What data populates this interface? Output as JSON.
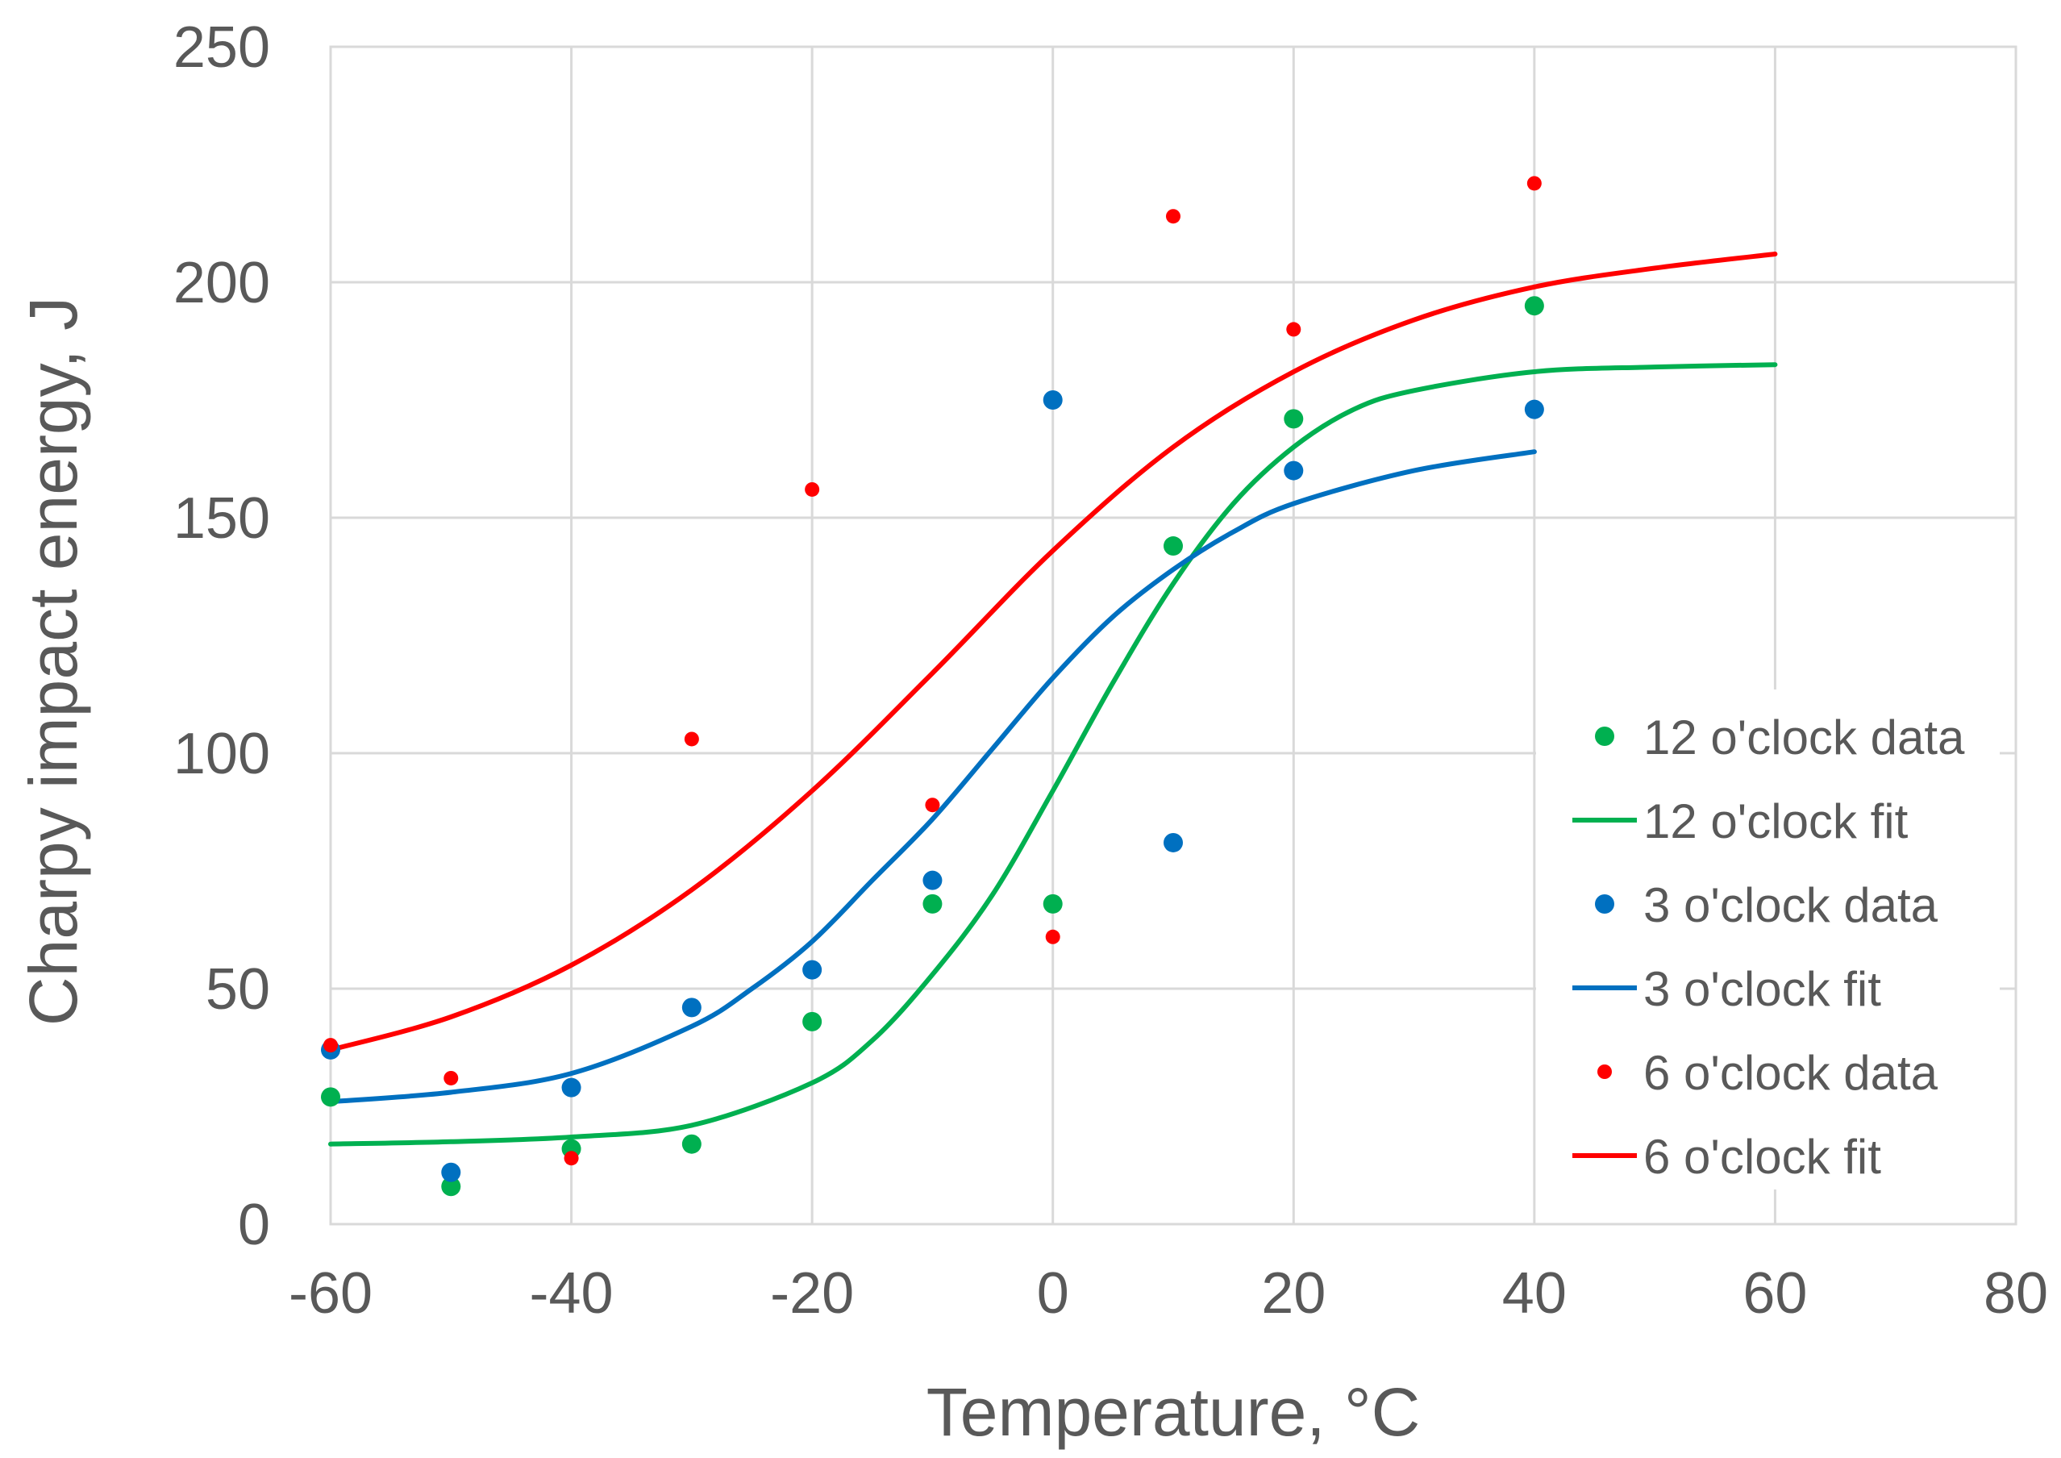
{
  "chart_data": {
    "type": "scatter",
    "title": "",
    "xlabel": "Temperature, °C",
    "ylabel": "Charpy impact energy, J",
    "xlim": [
      -60,
      80
    ],
    "ylim": [
      0,
      250
    ],
    "xticks": [
      -60,
      -40,
      -20,
      0,
      20,
      40,
      60,
      80
    ],
    "yticks": [
      0,
      50,
      100,
      150,
      200,
      250
    ],
    "grid": true,
    "legend_position": "right",
    "series": [
      {
        "name": "12 o'clock data",
        "kind": "scatter",
        "color": "#00b050",
        "points": [
          [
            -60,
            27
          ],
          [
            -50,
            8
          ],
          [
            -40,
            16
          ],
          [
            -30,
            17
          ],
          [
            -20,
            43
          ],
          [
            -10,
            68
          ],
          [
            0,
            68
          ],
          [
            10,
            144
          ],
          [
            20,
            171
          ],
          [
            40,
            195
          ]
        ]
      },
      {
        "name": "12 o'clock fit",
        "kind": "line",
        "color": "#00b050",
        "points": [
          [
            -60,
            17
          ],
          [
            -50,
            17.5
          ],
          [
            -40,
            18.5
          ],
          [
            -30,
            21
          ],
          [
            -20,
            30
          ],
          [
            -15,
            39
          ],
          [
            -10,
            53
          ],
          [
            -5,
            70
          ],
          [
            0,
            92
          ],
          [
            5,
            115
          ],
          [
            10,
            136
          ],
          [
            15,
            153
          ],
          [
            20,
            165
          ],
          [
            25,
            173
          ],
          [
            30,
            177
          ],
          [
            40,
            181
          ],
          [
            50,
            182
          ],
          [
            60,
            182.5
          ]
        ]
      },
      {
        "name": "3 o'clock data",
        "kind": "scatter",
        "color": "#0070c0",
        "points": [
          [
            -60,
            37
          ],
          [
            -50,
            11
          ],
          [
            -40,
            29
          ],
          [
            -30,
            46
          ],
          [
            -20,
            54
          ],
          [
            -10,
            73
          ],
          [
            0,
            175
          ],
          [
            10,
            81
          ],
          [
            20,
            160
          ],
          [
            40,
            173
          ]
        ]
      },
      {
        "name": "3 o'clock fit",
        "kind": "line",
        "color": "#0070c0",
        "points": [
          [
            -60,
            26
          ],
          [
            -50,
            28
          ],
          [
            -40,
            32
          ],
          [
            -30,
            42
          ],
          [
            -25,
            50
          ],
          [
            -20,
            60
          ],
          [
            -15,
            73
          ],
          [
            -10,
            86
          ],
          [
            -5,
            101
          ],
          [
            0,
            116
          ],
          [
            5,
            129
          ],
          [
            10,
            139
          ],
          [
            15,
            147
          ],
          [
            20,
            153
          ],
          [
            30,
            160
          ],
          [
            40,
            164
          ]
        ]
      },
      {
        "name": "6 o'clock data",
        "kind": "scatter",
        "color": "#ff0000",
        "points": [
          [
            -60,
            38
          ],
          [
            -50,
            31
          ],
          [
            -40,
            14
          ],
          [
            -30,
            103
          ],
          [
            -20,
            156
          ],
          [
            -10,
            89
          ],
          [
            0,
            61
          ],
          [
            10,
            214
          ],
          [
            20,
            190
          ],
          [
            40,
            221
          ]
        ]
      },
      {
        "name": "6 o'clock fit",
        "kind": "line",
        "color": "#ff0000",
        "points": [
          [
            -60,
            37
          ],
          [
            -50,
            44
          ],
          [
            -40,
            55
          ],
          [
            -30,
            71
          ],
          [
            -20,
            92
          ],
          [
            -10,
            117
          ],
          [
            0,
            143
          ],
          [
            10,
            165
          ],
          [
            20,
            181
          ],
          [
            30,
            192
          ],
          [
            40,
            199
          ],
          [
            50,
            203
          ],
          [
            60,
            206
          ]
        ]
      }
    ]
  }
}
